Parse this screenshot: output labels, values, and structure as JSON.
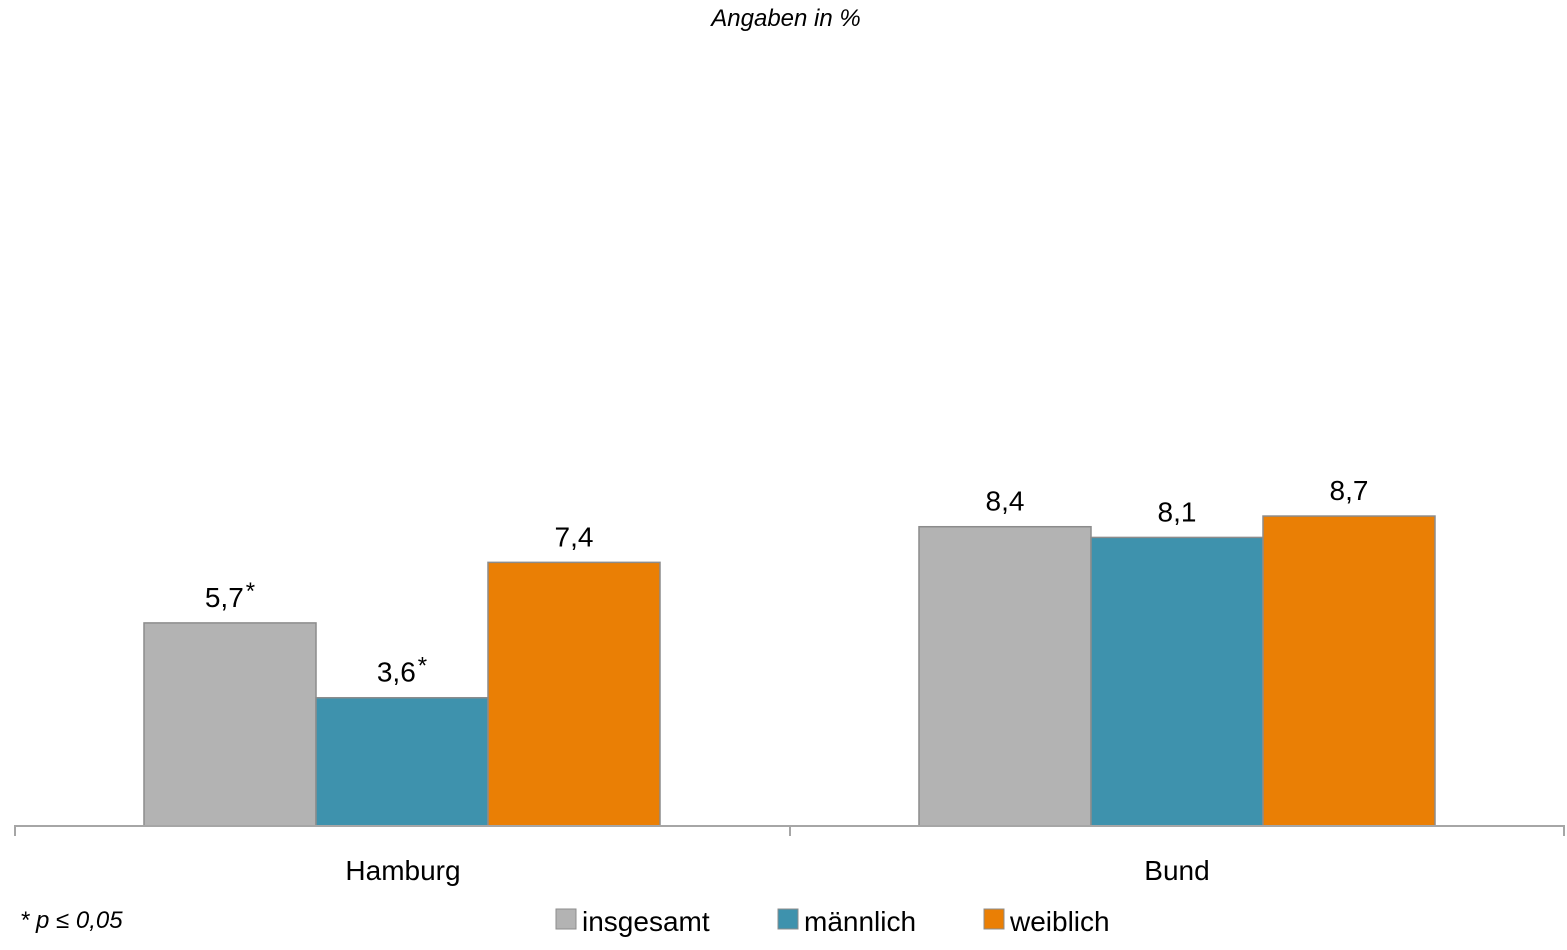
{
  "chart_data": {
    "type": "bar",
    "subtitle": "Angaben in %",
    "categories": [
      "Hamburg",
      "Bund"
    ],
    "series": [
      {
        "name": "insgesamt",
        "color": "#b3b3b3",
        "values": [
          5.7,
          8.4
        ],
        "labels": [
          "5,7",
          "8,4"
        ],
        "markers": [
          "*",
          ""
        ]
      },
      {
        "name": "männlich",
        "color": "#3e92ad",
        "values": [
          3.6,
          8.1
        ],
        "labels": [
          "3,6",
          "8,1"
        ],
        "markers": [
          "*",
          ""
        ]
      },
      {
        "name": "weiblich",
        "color": "#ea7f05",
        "values": [
          7.4,
          8.7
        ],
        "labels": [
          "7,4",
          "8,7"
        ],
        "markers": [
          "",
          ""
        ]
      }
    ],
    "ylim": [
      0,
      21.5
    ],
    "grid": false,
    "legend_position": "bottom",
    "footnote": "* p ≤ 0,05"
  }
}
